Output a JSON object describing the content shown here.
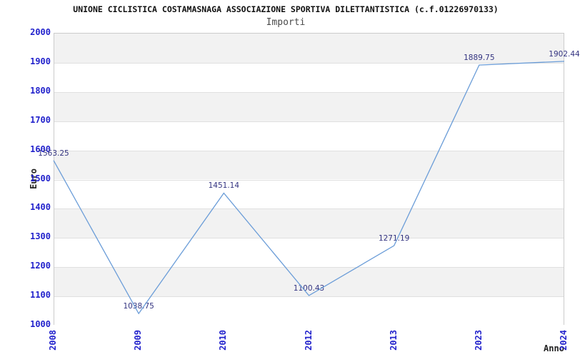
{
  "header": {
    "title": "UNIONE CICLISTICA COSTAMASNAGA ASSOCIAZIONE SPORTIVA DILETTANTISTICA (c.f.01226970133)",
    "subtitle": "Importi"
  },
  "chart_data": {
    "type": "line",
    "title": "Importi",
    "xlabel": "Anno",
    "ylabel": "Euro",
    "categories": [
      "2008",
      "2009",
      "2010",
      "2012",
      "2013",
      "2023",
      "2024"
    ],
    "values": [
      1563.25,
      1038.75,
      1451.14,
      1100.43,
      1271.19,
      1889.75,
      1902.44
    ],
    "point_labels": [
      "1563.25",
      "1038.75",
      "1451.14",
      "1100.43",
      "1271.19",
      "1889.75",
      "1902.44"
    ],
    "ylim": [
      1000,
      2000
    ],
    "ytick_step": 100,
    "ytick_labels": [
      "1000",
      "1100",
      "1200",
      "1300",
      "1400",
      "1500",
      "1600",
      "1700",
      "1800",
      "1900",
      "2000"
    ],
    "grid": "horizontal-alternating-bands",
    "legend_position": "none",
    "colors": {
      "line": "#6b9dd8",
      "tick_label": "#2222cc",
      "point_label": "#333380",
      "band_shade": "#f2f2f2",
      "band_light": "#ffffff",
      "grid_line": "#e0e0e0",
      "plot_border": "#cccccc",
      "title": "#111111",
      "subtitle": "#4a4a4a",
      "axis_title": "#222222"
    }
  }
}
